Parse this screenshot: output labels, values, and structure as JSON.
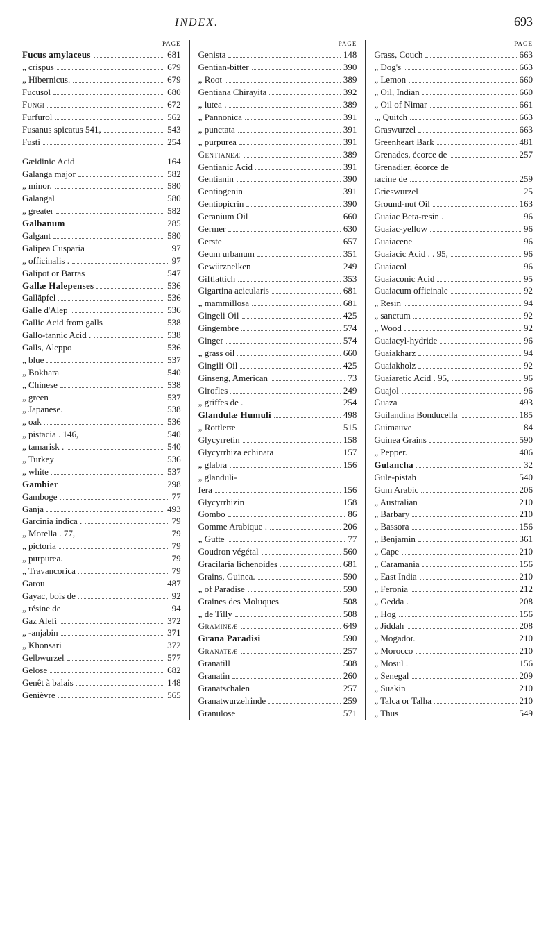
{
  "header": {
    "title": "INDEX.",
    "pageNumber": "693",
    "pageLabel": "PAGE"
  },
  "columns": [
    [
      {
        "term": "Fucus amylaceus",
        "page": "681",
        "bold": true
      },
      {
        "term": "„    crispus",
        "page": "679",
        "ditto": true
      },
      {
        "term": "„    Hibernicus.",
        "page": "679",
        "ditto": true
      },
      {
        "term": "Fucusol",
        "page": "680"
      },
      {
        "term": "Fungi",
        "page": "672",
        "smallcaps": true
      },
      {
        "term": "Furfurol",
        "page": "562"
      },
      {
        "term": "Fusanus spicatus  541,",
        "page": "543"
      },
      {
        "term": "Fusti",
        "page": "254"
      },
      {
        "gap": true
      },
      {
        "term": "Gæidinic Acid",
        "page": "164"
      },
      {
        "term": "Galanga major",
        "page": "582"
      },
      {
        "term": "„      minor.",
        "page": "580",
        "ditto": true
      },
      {
        "term": "Galangal",
        "page": "580"
      },
      {
        "term": "„     greater",
        "page": "582",
        "ditto": true
      },
      {
        "term": "Galbanum",
        "page": "285",
        "bold": true
      },
      {
        "term": "Galgant",
        "page": "580"
      },
      {
        "term": "Galipea Cusparia",
        "page": "97"
      },
      {
        "term": "„     officinalis .",
        "page": "97",
        "ditto": true
      },
      {
        "term": "Galipot or Barras",
        "page": "547"
      },
      {
        "term": "Gallæ Halepenses",
        "page": "536",
        "bold": true
      },
      {
        "term": "Galläpfel",
        "page": "536"
      },
      {
        "term": "Galle d'Alep",
        "page": "536"
      },
      {
        "term": "Gallic Acid from galls",
        "page": "538"
      },
      {
        "term": "Gallo-tannic Acid .",
        "page": "538"
      },
      {
        "term": "Galls, Aleppo",
        "page": "536"
      },
      {
        "term": "„   blue",
        "page": "537",
        "ditto": true
      },
      {
        "term": "„   Bokhara",
        "page": "540",
        "ditto": true
      },
      {
        "term": "„   Chinese",
        "page": "538",
        "ditto": true
      },
      {
        "term": "„   green",
        "page": "537",
        "ditto": true
      },
      {
        "term": "„   Japanese.",
        "page": "538",
        "ditto": true
      },
      {
        "term": "„   oak",
        "page": "536",
        "ditto": true
      },
      {
        "term": "„   pistacia . 146,",
        "page": "540",
        "ditto": true
      },
      {
        "term": "„   tamarisk .",
        "page": "540",
        "ditto": true
      },
      {
        "term": "„   Turkey",
        "page": "536",
        "ditto": true
      },
      {
        "term": "„   white",
        "page": "537",
        "ditto": true
      },
      {
        "term": "Gambier",
        "page": "298",
        "bold": true
      },
      {
        "term": "Gamboge",
        "page": "77"
      },
      {
        "term": "Ganja",
        "page": "493"
      },
      {
        "term": "Garcinia indica .",
        "page": "79"
      },
      {
        "term": "„     Morella . 77,",
        "page": "79",
        "ditto": true
      },
      {
        "term": "„     pictoria",
        "page": "79",
        "ditto": true
      },
      {
        "term": "„     purpurea.",
        "page": "79",
        "ditto": true
      },
      {
        "term": "„     Travancorica",
        "page": "79",
        "ditto": true
      },
      {
        "term": "Garou",
        "page": "487"
      },
      {
        "term": "Gayac, bois de",
        "page": "92"
      },
      {
        "term": "„    résine de",
        "page": "94",
        "ditto": true
      },
      {
        "term": "Gaz Alefi",
        "page": "372"
      },
      {
        "term": "„  -anjabin",
        "page": "371",
        "ditto": true
      },
      {
        "term": "„  Khonsari",
        "page": "372",
        "ditto": true
      },
      {
        "term": "Gelbwurzel",
        "page": "577"
      },
      {
        "term": "Gelose",
        "page": "682"
      },
      {
        "term": "Genêt à balais",
        "page": "148"
      },
      {
        "term": "Genièvre",
        "page": "565"
      }
    ],
    [
      {
        "term": "Genista",
        "page": "148"
      },
      {
        "term": "Gentian-bitter",
        "page": "390"
      },
      {
        "term": "„    Root",
        "page": "389",
        "ditto": true
      },
      {
        "term": "Gentiana Chirayita",
        "page": "392"
      },
      {
        "term": "„     lutea .",
        "page": "389",
        "ditto": true
      },
      {
        "term": "„     Pannonica",
        "page": "391",
        "ditto": true
      },
      {
        "term": "„     punctata",
        "page": "391",
        "ditto": true
      },
      {
        "term": "„     purpurea",
        "page": "391",
        "ditto": true
      },
      {
        "term": "Gentianeæ",
        "page": "389",
        "smallcaps": true
      },
      {
        "term": "Gentianic Acid",
        "page": "391"
      },
      {
        "term": "Gentianin",
        "page": "390"
      },
      {
        "term": "Gentiogenin",
        "page": "391"
      },
      {
        "term": "Gentiopicrin",
        "page": "390"
      },
      {
        "term": "Geranium Oil",
        "page": "660"
      },
      {
        "term": "Germer",
        "page": "630"
      },
      {
        "term": "Gerste",
        "page": "657"
      },
      {
        "term": "Geum urbanum",
        "page": "351"
      },
      {
        "term": "Gewürznelken",
        "page": "249"
      },
      {
        "term": "Giftlattich",
        "page": "353"
      },
      {
        "term": "Gigartina acicularis",
        "page": "681"
      },
      {
        "term": "„     mammillosa",
        "page": "681",
        "ditto": true
      },
      {
        "term": "Gingeli Oil",
        "page": "425"
      },
      {
        "term": "Gingembre",
        "page": "574"
      },
      {
        "term": "Ginger",
        "page": "574"
      },
      {
        "term": "„   grass oil",
        "page": "660",
        "ditto": true
      },
      {
        "term": "Gingili Oil",
        "page": "425"
      },
      {
        "term": "Ginseng, American",
        "page": "73"
      },
      {
        "term": "Girofles",
        "page": "249"
      },
      {
        "term": "„    griffes de .",
        "page": "254",
        "ditto": true
      },
      {
        "term": "Glandulæ Humuli",
        "page": "498",
        "bold": true
      },
      {
        "term": "„      Rottleræ",
        "page": "515",
        "ditto": true
      },
      {
        "term": "Glycyrretin",
        "page": "158"
      },
      {
        "term": "Glycyrrhiza echinata",
        "page": "157"
      },
      {
        "term": "„       glabra",
        "page": "156",
        "ditto": true
      },
      {
        "term": "„       glanduli-",
        "page": "",
        "ditto": true,
        "nodots": true
      },
      {
        "term": "            fera",
        "page": "156",
        "ditto": true
      },
      {
        "term": "Glycyrrhizin",
        "page": "158"
      },
      {
        "term": "Gombo",
        "page": "86"
      },
      {
        "term": "Gomme Arabique .",
        "page": "206"
      },
      {
        "term": "„    Gutte",
        "page": "77",
        "ditto": true
      },
      {
        "term": "Goudron végétal",
        "page": "560"
      },
      {
        "term": "Gracilaria lichenoides",
        "page": "681"
      },
      {
        "term": "Grains, Guinea.",
        "page": "590"
      },
      {
        "term": "„    of Paradise",
        "page": "590",
        "ditto": true
      },
      {
        "term": "Graines des Moluques",
        "page": "508"
      },
      {
        "term": "„    de Tilly",
        "page": "508",
        "ditto": true
      },
      {
        "term": "Gramineæ",
        "page": "649",
        "smallcaps": true
      },
      {
        "term": "Grana Paradisi",
        "page": "590",
        "bold": true
      },
      {
        "term": "Granateæ",
        "page": "257",
        "smallcaps": true
      },
      {
        "term": "Granatill",
        "page": "508"
      },
      {
        "term": "Granatin",
        "page": "260"
      },
      {
        "term": "Granatschalen",
        "page": "257"
      },
      {
        "term": "Granatwurzelrinde",
        "page": "259"
      },
      {
        "term": "Granulose",
        "page": "571"
      }
    ],
    [
      {
        "term": "Grass, Couch",
        "page": "663"
      },
      {
        "term": "„   Dog's",
        "page": "663",
        "ditto": true
      },
      {
        "term": "„   Lemon",
        "page": "660",
        "ditto": true
      },
      {
        "term": "„   Oil, Indian",
        "page": "660",
        "ditto": true
      },
      {
        "term": "„   Oil of Nimar",
        "page": "661",
        "ditto": true
      },
      {
        "term": ".„   Quitch",
        "page": "663",
        "ditto": true
      },
      {
        "term": "Graswurzel",
        "page": "663"
      },
      {
        "term": "Greenheart Bark",
        "page": "481"
      },
      {
        "term": "Grenades, écorce de",
        "page": "257"
      },
      {
        "term": "Grenadier, écorce de",
        "page": "",
        "nodots": true
      },
      {
        "term": "    racine de",
        "page": "259"
      },
      {
        "term": "Grieswurzel",
        "page": "25"
      },
      {
        "term": "Ground-nut Oil",
        "page": "163"
      },
      {
        "term": "Guaiac Beta-resin .",
        "page": "96"
      },
      {
        "term": "Guaiac-yellow",
        "page": "96"
      },
      {
        "term": "Guaiacene",
        "page": "96"
      },
      {
        "term": "Guaiacic Acid . . 95,",
        "page": "96"
      },
      {
        "term": "Guaiacol",
        "page": "96"
      },
      {
        "term": "Guaiaconic Acid",
        "page": "95"
      },
      {
        "term": "Guaiacum officinale",
        "page": "92"
      },
      {
        "term": "„      Resin",
        "page": "94",
        "ditto": true
      },
      {
        "term": "„      sanctum",
        "page": "92",
        "ditto": true
      },
      {
        "term": "„      Wood",
        "page": "92",
        "ditto": true
      },
      {
        "term": "Guaiacyl-hydride",
        "page": "96"
      },
      {
        "term": "Guaiakharz",
        "page": "94"
      },
      {
        "term": "Guaiakholz",
        "page": "92"
      },
      {
        "term": "Guaiaretic Acid . 95,",
        "page": "96"
      },
      {
        "term": "Guajol",
        "page": "96"
      },
      {
        "term": "Guaza",
        "page": "493"
      },
      {
        "term": "Guilandina Bonducella",
        "page": "185"
      },
      {
        "term": "Guimauve",
        "page": "84"
      },
      {
        "term": "Guinea Grains",
        "page": "590"
      },
      {
        "term": "„    Pepper.",
        "page": "406",
        "ditto": true
      },
      {
        "term": "Gulancha",
        "page": "32",
        "bold": true
      },
      {
        "term": "Gule-pistah",
        "page": "540"
      },
      {
        "term": "Gum Arabic",
        "page": "206"
      },
      {
        "term": "„   Australian",
        "page": "210",
        "ditto": true
      },
      {
        "term": "„   Barbary",
        "page": "210",
        "ditto": true
      },
      {
        "term": "„   Bassora",
        "page": "156",
        "ditto": true
      },
      {
        "term": "„   Benjamin",
        "page": "361",
        "ditto": true
      },
      {
        "term": "„   Cape",
        "page": "210",
        "ditto": true
      },
      {
        "term": "„   Caramania",
        "page": "156",
        "ditto": true
      },
      {
        "term": "„   East India",
        "page": "210",
        "ditto": true
      },
      {
        "term": "„   Feronia",
        "page": "212",
        "ditto": true
      },
      {
        "term": "„   Gedda  .",
        "page": "208",
        "ditto": true
      },
      {
        "term": "„   Hog",
        "page": "156",
        "ditto": true
      },
      {
        "term": "„   Jiddah",
        "page": "208",
        "ditto": true
      },
      {
        "term": "„   Mogador.",
        "page": "210",
        "ditto": true
      },
      {
        "term": "„   Morocco",
        "page": "210",
        "ditto": true
      },
      {
        "term": "„   Mosul .",
        "page": "156",
        "ditto": true
      },
      {
        "term": "„   Senegal",
        "page": "209",
        "ditto": true
      },
      {
        "term": "„   Suakin",
        "page": "210",
        "ditto": true
      },
      {
        "term": "„   Talca or Talha",
        "page": "210",
        "ditto": true
      },
      {
        "term": "„   Thus",
        "page": "549",
        "ditto": true
      }
    ]
  ]
}
